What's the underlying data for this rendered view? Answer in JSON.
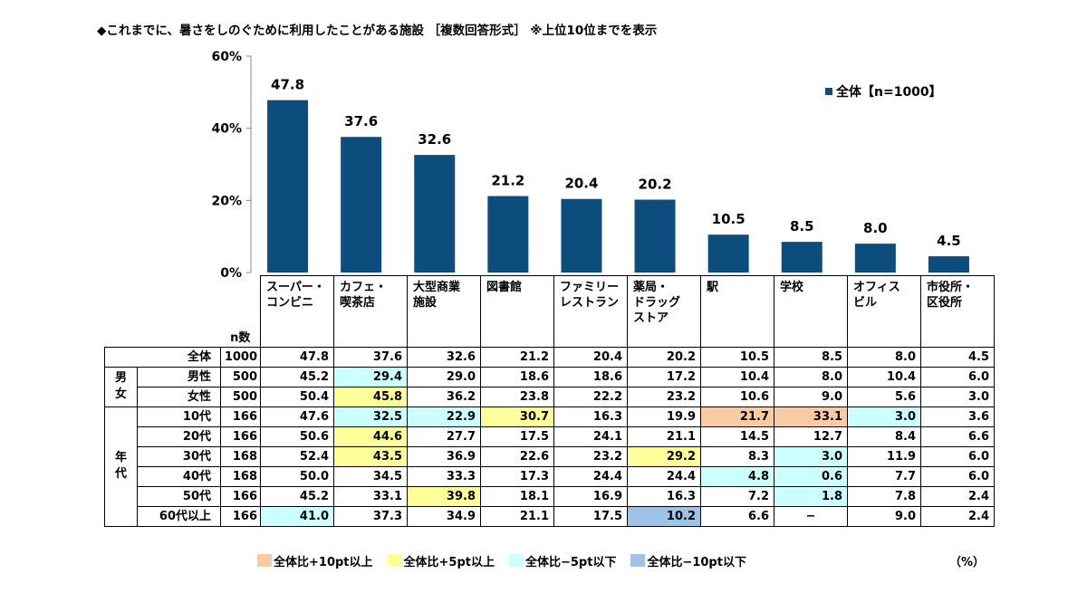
{
  "title": "◆これまでに、暑さをしのぐために利用したことがある施設 ［複数回答形式］ ※上位10位までを表示",
  "colors": {
    "bar": "#0d4d7d",
    "high10": "#f8cba5",
    "high5": "#ffff99",
    "low5": "#ccffff",
    "low10": "#9dc3e6"
  },
  "chart_data": {
    "type": "bar",
    "categories": [
      "スーパー・\nコンビニ",
      "カフェ・\n喫茶店",
      "大型商業\n施設",
      "図書館",
      "ファミリー\nレストラン",
      "薬局・\nドラッグ\nストア",
      "駅",
      "学校",
      "オフィス\nビル",
      "市役所・\n区役所"
    ],
    "series": [
      {
        "name": "全体【n=1000】",
        "values": [
          47.8,
          37.6,
          32.6,
          21.2,
          20.4,
          20.2,
          10.5,
          8.5,
          8.0,
          4.5
        ]
      }
    ],
    "yticks": [
      "60%",
      "40%",
      "20%",
      "0%"
    ],
    "ylim": [
      0,
      60
    ],
    "legend_position": "top-right"
  },
  "table": {
    "n_header": "n数",
    "rows": [
      {
        "group": "",
        "label": "全体",
        "n": "1000",
        "values": [
          "47.8",
          "37.6",
          "32.6",
          "21.2",
          "20.4",
          "20.2",
          "10.5",
          "8.5",
          "8.0",
          "4.5"
        ],
        "highlight": [
          "",
          "",
          "",
          "",
          "",
          "",
          "",
          "",
          "",
          ""
        ]
      },
      {
        "group": "男女",
        "label": "男性",
        "n": "500",
        "values": [
          "45.2",
          "29.4",
          "29.0",
          "18.6",
          "18.6",
          "17.2",
          "10.4",
          "8.0",
          "10.4",
          "6.0"
        ],
        "highlight": [
          "",
          "low5",
          "",
          "",
          "",
          "",
          "",
          "",
          "",
          ""
        ]
      },
      {
        "group": "男女",
        "label": "女性",
        "n": "500",
        "values": [
          "50.4",
          "45.8",
          "36.2",
          "23.8",
          "22.2",
          "23.2",
          "10.6",
          "9.0",
          "5.6",
          "3.0"
        ],
        "highlight": [
          "",
          "high5",
          "",
          "",
          "",
          "",
          "",
          "",
          "",
          ""
        ]
      },
      {
        "group": "年代",
        "label": "10代",
        "n": "166",
        "values": [
          "47.6",
          "32.5",
          "22.9",
          "30.7",
          "16.3",
          "19.9",
          "21.7",
          "33.1",
          "3.0",
          "3.6"
        ],
        "highlight": [
          "",
          "low5",
          "low5",
          "high5",
          "",
          "",
          "high10",
          "high10",
          "low5",
          ""
        ]
      },
      {
        "group": "年代",
        "label": "20代",
        "n": "166",
        "values": [
          "50.6",
          "44.6",
          "27.7",
          "17.5",
          "24.1",
          "21.1",
          "14.5",
          "12.7",
          "8.4",
          "6.6"
        ],
        "highlight": [
          "",
          "high5",
          "",
          "",
          "",
          "",
          "",
          "",
          "",
          ""
        ]
      },
      {
        "group": "年代",
        "label": "30代",
        "n": "168",
        "values": [
          "52.4",
          "43.5",
          "36.9",
          "22.6",
          "23.2",
          "29.2",
          "8.3",
          "3.0",
          "11.9",
          "6.0"
        ],
        "highlight": [
          "",
          "high5",
          "",
          "",
          "",
          "high5",
          "",
          "low5",
          "",
          ""
        ]
      },
      {
        "group": "年代",
        "label": "40代",
        "n": "168",
        "values": [
          "50.0",
          "34.5",
          "33.3",
          "17.3",
          "24.4",
          "24.4",
          "4.8",
          "0.6",
          "7.7",
          "6.0"
        ],
        "highlight": [
          "",
          "",
          "",
          "",
          "",
          "",
          "low5",
          "low5",
          "",
          ""
        ]
      },
      {
        "group": "年代",
        "label": "50代",
        "n": "166",
        "values": [
          "45.2",
          "33.1",
          "39.8",
          "18.1",
          "16.9",
          "16.3",
          "7.2",
          "1.8",
          "7.8",
          "2.4"
        ],
        "highlight": [
          "",
          "",
          "high5",
          "",
          "",
          "",
          "",
          "low5",
          "",
          ""
        ]
      },
      {
        "group": "年代",
        "label": "60代以上",
        "n": "166",
        "values": [
          "41.0",
          "37.3",
          "34.9",
          "21.1",
          "17.5",
          "10.2",
          "6.6",
          "−",
          "9.0",
          "2.4"
        ],
        "highlight": [
          "low5",
          "",
          "",
          "",
          "",
          "low10",
          "",
          "",
          "",
          ""
        ]
      }
    ],
    "group_labels": {
      "gender": "男女",
      "age": "年代"
    }
  },
  "legend": [
    {
      "key": "high10",
      "label": "全体比+10pt以上"
    },
    {
      "key": "high5",
      "label": "全体比+5pt以上"
    },
    {
      "key": "low5",
      "label": "全体比−5pt以下"
    },
    {
      "key": "low10",
      "label": "全体比−10pt以下"
    }
  ],
  "unit": "（%）"
}
